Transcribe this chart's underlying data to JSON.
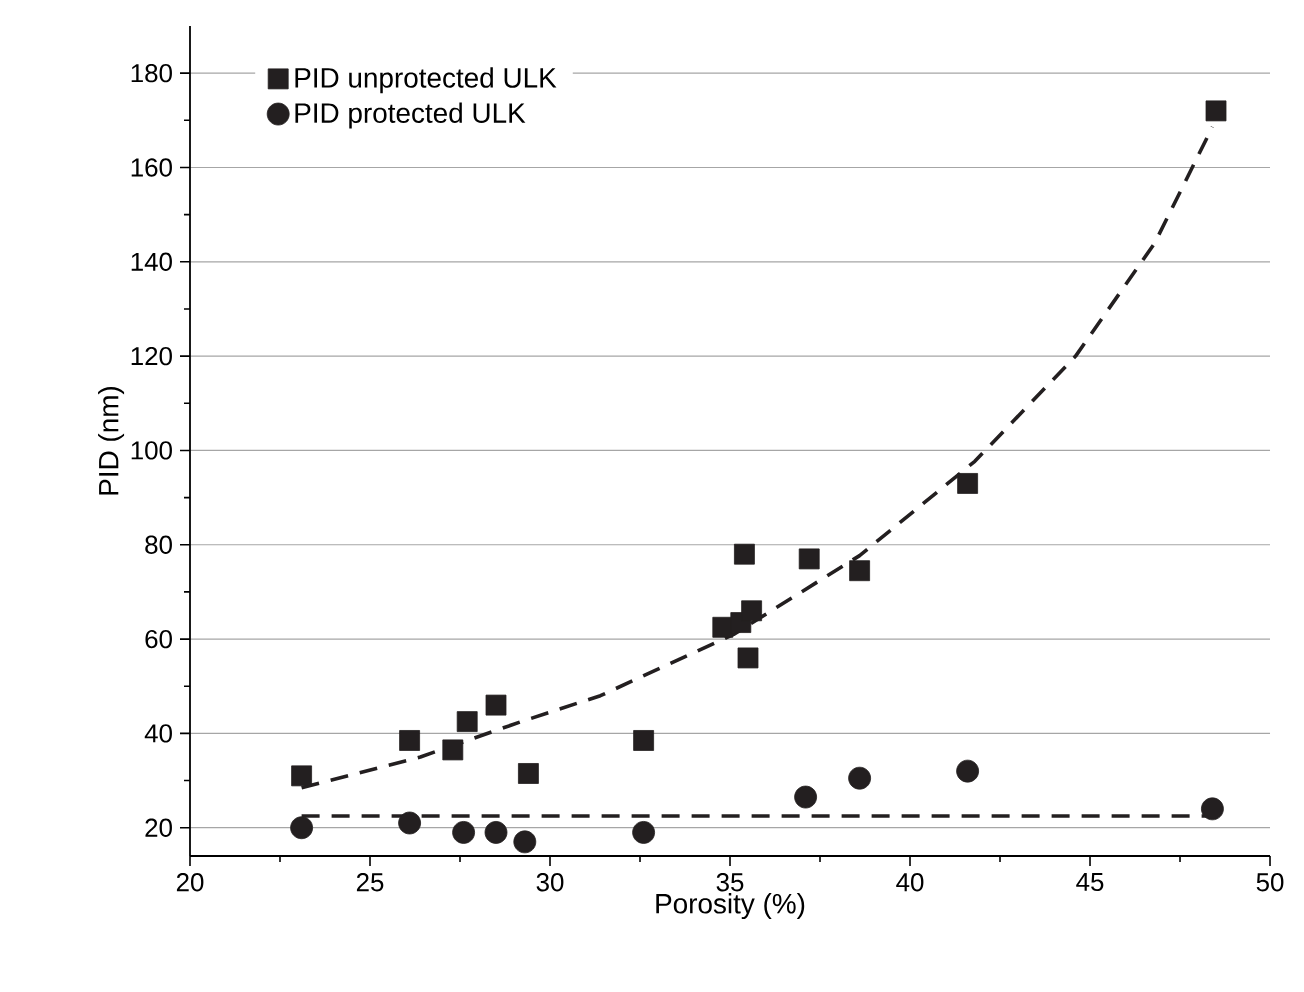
{
  "chart_data": {
    "type": "scatter",
    "xlabel": "Porosity (%)",
    "ylabel": "PID (nm)",
    "xlim": [
      20,
      50
    ],
    "ylim": [
      14,
      190
    ],
    "xticks": [
      20,
      25,
      30,
      35,
      40,
      45,
      50
    ],
    "yticks": [
      20,
      40,
      60,
      80,
      100,
      120,
      140,
      160,
      180
    ],
    "grid": "y",
    "legend": "top left",
    "series": [
      {
        "name": "PID unprotected  ULK",
        "color": "#231f20",
        "marker": "square",
        "x": [
          23.1,
          26.1,
          27.3,
          27.7,
          28.5,
          29.4,
          32.6,
          34.8,
          35.3,
          35.4,
          35.5,
          35.6,
          37.2,
          38.6,
          41.6,
          48.5
        ],
        "values": [
          31,
          38.5,
          36.5,
          42.5,
          46,
          31.5,
          38.5,
          62.5,
          63.5,
          78,
          56,
          66,
          77,
          74.5,
          93,
          172
        ]
      },
      {
        "name": "PID protected ULK",
        "color": "#231f20",
        "marker": "circle",
        "x": [
          23.1,
          26.1,
          27.6,
          28.5,
          29.3,
          32.6,
          37.1,
          38.6,
          41.6,
          48.4
        ],
        "values": [
          20,
          21,
          19,
          19,
          17,
          19,
          26.5,
          30.5,
          32,
          24
        ]
      },
      {
        "type": "line",
        "color": "#231f20",
        "line_style": "dashed",
        "marker": "none",
        "x": [
          23.1,
          26.4,
          29.2,
          31.4,
          35.1,
          38.6,
          41.8,
          44.6,
          46.8,
          48.4
        ],
        "values": [
          28.5,
          35,
          42.5,
          48,
          61,
          77.7,
          97.7,
          120,
          144,
          168.6
        ]
      },
      {
        "type": "line",
        "color": "#231f20",
        "line_style": "dashed",
        "marker": "none",
        "x": [
          23.1,
          48.4
        ],
        "values": [
          22.5,
          22.5
        ]
      }
    ]
  }
}
